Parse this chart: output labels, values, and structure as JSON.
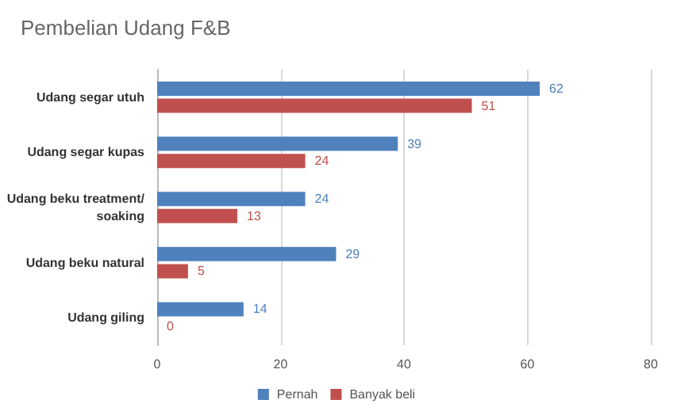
{
  "chart_data": {
    "type": "bar",
    "orientation": "horizontal",
    "title": "Pembelian Udang F&B",
    "categories": [
      "Udang segar utuh",
      "Udang segar kupas",
      "Udang beku treatment/soaking",
      "Udang beku natural",
      "Udang giling"
    ],
    "series": [
      {
        "name": "Pernah",
        "color": "#4f81bd",
        "values": [
          62,
          39,
          24,
          29,
          14
        ]
      },
      {
        "name": "Banyak beli",
        "color": "#c0504d",
        "values": [
          51,
          24,
          13,
          5,
          0
        ]
      }
    ],
    "xlim": [
      0,
      80
    ],
    "xticks": [
      0,
      20,
      40,
      60,
      80
    ],
    "grid": "x",
    "legend": "bottom",
    "data_labels": true
  }
}
